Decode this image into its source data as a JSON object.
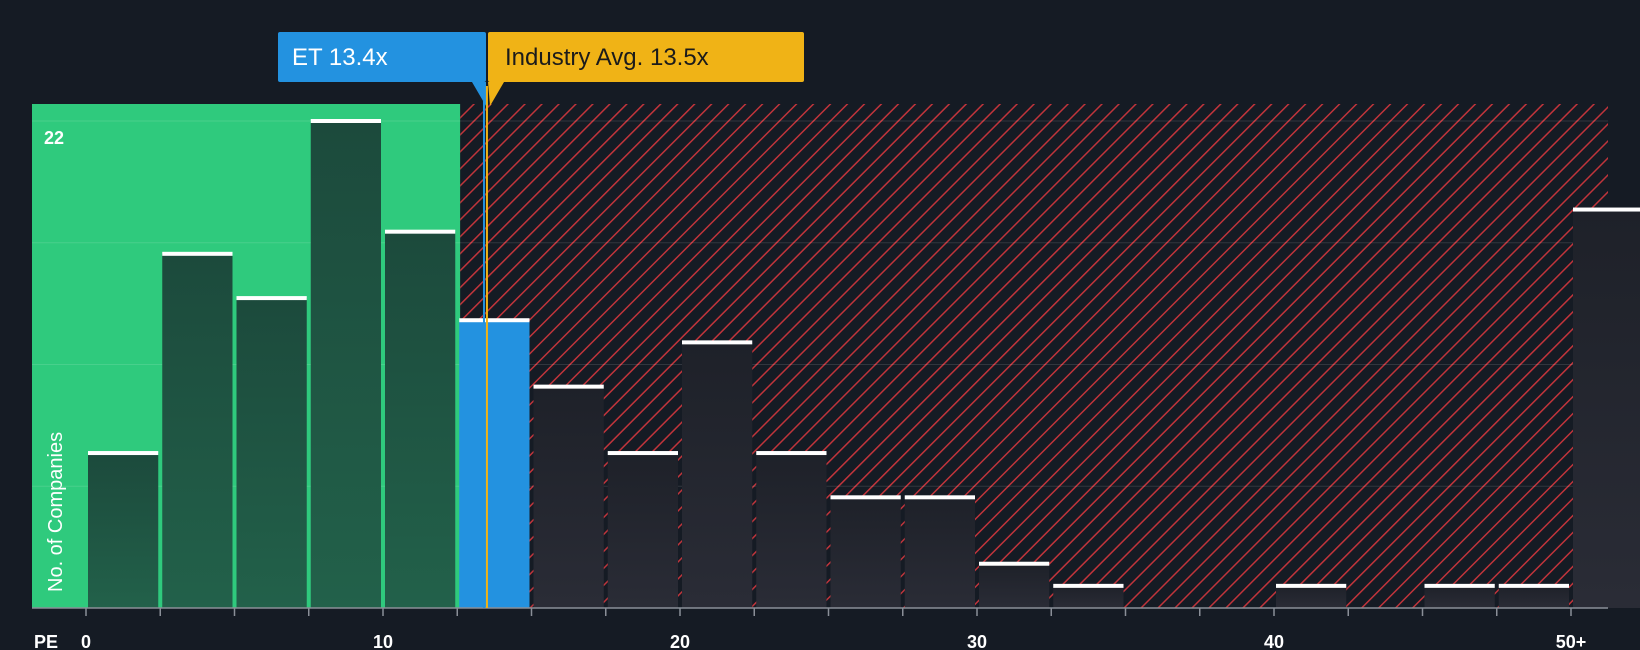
{
  "chart_data": {
    "type": "bar",
    "title": "",
    "xlabel": "PE",
    "ylabel": "No. of Companies",
    "x_tick_labels": [
      "0",
      "10",
      "20",
      "30",
      "40",
      "50+"
    ],
    "x_tick_values": [
      0,
      10,
      20,
      30,
      40,
      50
    ],
    "xlim": [
      0,
      51.5
    ],
    "y_top_label": "22",
    "ylim": [
      0,
      22.7
    ],
    "bin_width": 2.5,
    "bins": [
      {
        "x_start": 0.0,
        "value": 7
      },
      {
        "x_start": 2.5,
        "value": 16
      },
      {
        "x_start": 5.0,
        "value": 14
      },
      {
        "x_start": 7.5,
        "value": 22
      },
      {
        "x_start": 10.0,
        "value": 17
      },
      {
        "x_start": 12.5,
        "value": 13
      },
      {
        "x_start": 15.0,
        "value": 10
      },
      {
        "x_start": 17.5,
        "value": 7
      },
      {
        "x_start": 20.0,
        "value": 12
      },
      {
        "x_start": 22.5,
        "value": 7
      },
      {
        "x_start": 25.0,
        "value": 5
      },
      {
        "x_start": 27.5,
        "value": 5
      },
      {
        "x_start": 30.0,
        "value": 2
      },
      {
        "x_start": 32.5,
        "value": 1
      },
      {
        "x_start": 35.0,
        "value": 0
      },
      {
        "x_start": 37.5,
        "value": 0
      },
      {
        "x_start": 40.0,
        "value": 1
      },
      {
        "x_start": 42.5,
        "value": 0
      },
      {
        "x_start": 45.0,
        "value": 1
      },
      {
        "x_start": 47.5,
        "value": 1
      },
      {
        "x_start": 50.0,
        "value": 18
      }
    ],
    "company": {
      "label": "ET 13.4x",
      "value": 13.4,
      "color": "#2392e0"
    },
    "industry": {
      "label": "Industry Avg. 13.5x",
      "value": 13.5,
      "color": "#f0b316"
    },
    "colors": {
      "background": "#151b24",
      "fair_zone": "#2fca7d",
      "fair_bar": "#1c4a3c",
      "expensive_hatch": "#c0343b",
      "expensive_bar": "#262832",
      "bar_cap": "#ffffff"
    }
  }
}
